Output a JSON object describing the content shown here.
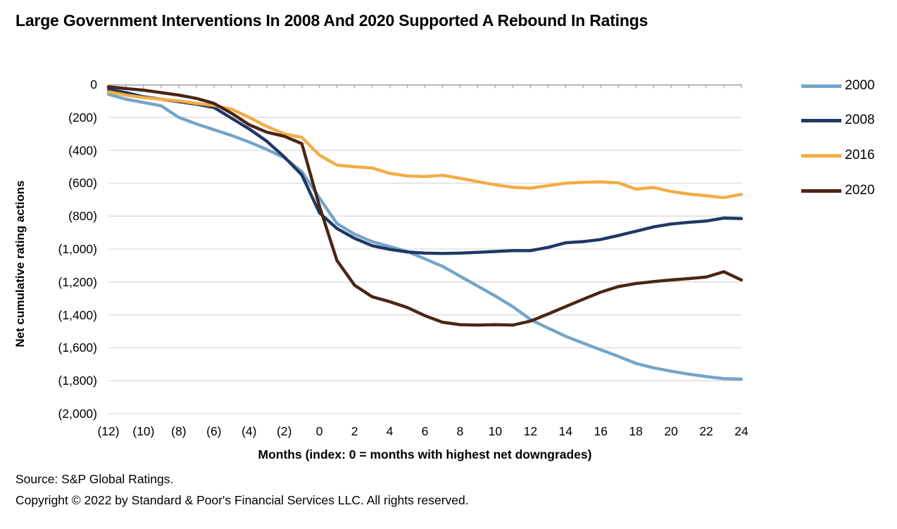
{
  "title": "Large Government Interventions In 2008 And 2020 Supported A Rebound In Ratings",
  "chart_data": {
    "type": "line",
    "title": "Large Government Interventions In 2008 And 2020 Supported A Rebound In Ratings",
    "xlabel": "Months (index: 0 = months with highest net downgrades)",
    "ylabel": "Net cumulative rating actions",
    "xlim": [
      -12,
      24
    ],
    "ylim": [
      -2000,
      0
    ],
    "grid": "horizontal",
    "legend_position": "right",
    "x": [
      -12,
      -11,
      -10,
      -9,
      -8,
      -7,
      -6,
      -5,
      -4,
      -3,
      -2,
      -1,
      0,
      1,
      2,
      3,
      4,
      5,
      6,
      7,
      8,
      9,
      10,
      11,
      12,
      13,
      14,
      15,
      16,
      17,
      18,
      19,
      20,
      21,
      22,
      23,
      24
    ],
    "x_tick_labels": [
      "(12)",
      "(10)",
      "(8)",
      "(6)",
      "(4)",
      "(2)",
      "0",
      "2",
      "4",
      "6",
      "8",
      "10",
      "12",
      "14",
      "16",
      "18",
      "20",
      "22",
      "24"
    ],
    "y_ticks": [
      0,
      -200,
      -400,
      -600,
      -800,
      -1000,
      -1200,
      -1400,
      -1600,
      -1800,
      -2000
    ],
    "y_tick_labels": [
      "0",
      "(200)",
      "(400)",
      "(600)",
      "(800)",
      "(1,000)",
      "(1,200)",
      "(1,400)",
      "(1,600)",
      "(1,800)",
      "(2,000)"
    ],
    "series": [
      {
        "name": "2000",
        "color": "#74A4C9",
        "values": [
          -60,
          -90,
          -110,
          -130,
          -200,
          -240,
          -275,
          -310,
          -350,
          -395,
          -445,
          -530,
          -690,
          -845,
          -910,
          -955,
          -985,
          -1015,
          -1060,
          -1105,
          -1165,
          -1225,
          -1285,
          -1350,
          -1428,
          -1480,
          -1530,
          -1572,
          -1612,
          -1652,
          -1695,
          -1722,
          -1742,
          -1760,
          -1775,
          -1787,
          -1790
        ]
      },
      {
        "name": "2008",
        "color": "#1F3864",
        "values": [
          -30,
          -50,
          -75,
          -90,
          -105,
          -120,
          -140,
          -205,
          -270,
          -345,
          -440,
          -550,
          -780,
          -875,
          -935,
          -980,
          -1002,
          -1018,
          -1025,
          -1027,
          -1025,
          -1020,
          -1015,
          -1010,
          -1010,
          -990,
          -962,
          -955,
          -942,
          -918,
          -892,
          -866,
          -848,
          -838,
          -830,
          -812,
          -815
        ]
      },
      {
        "name": "2016",
        "color": "#F4AC44",
        "values": [
          -45,
          -65,
          -80,
          -90,
          -100,
          -115,
          -128,
          -150,
          -200,
          -255,
          -300,
          -322,
          -430,
          -490,
          -500,
          -508,
          -540,
          -556,
          -560,
          -552,
          -570,
          -590,
          -610,
          -625,
          -630,
          -615,
          -600,
          -595,
          -592,
          -598,
          -636,
          -626,
          -650,
          -666,
          -676,
          -688,
          -668
        ]
      },
      {
        "name": "2020",
        "color": "#4A2516",
        "values": [
          -15,
          -25,
          -35,
          -50,
          -65,
          -85,
          -115,
          -175,
          -245,
          -290,
          -315,
          -360,
          -740,
          -1070,
          -1220,
          -1290,
          -1320,
          -1355,
          -1405,
          -1445,
          -1460,
          -1462,
          -1460,
          -1462,
          -1438,
          -1395,
          -1350,
          -1305,
          -1262,
          -1228,
          -1210,
          -1198,
          -1188,
          -1180,
          -1170,
          -1138,
          -1188
        ]
      }
    ],
    "axis_color": "#A6A6A6",
    "gridline_color": "#D9D9D9"
  },
  "footer": {
    "source": "Source: S&P Global Ratings.",
    "copyright": "Copyright © 2022 by Standard & Poor's Financial Services LLC. All rights reserved."
  }
}
